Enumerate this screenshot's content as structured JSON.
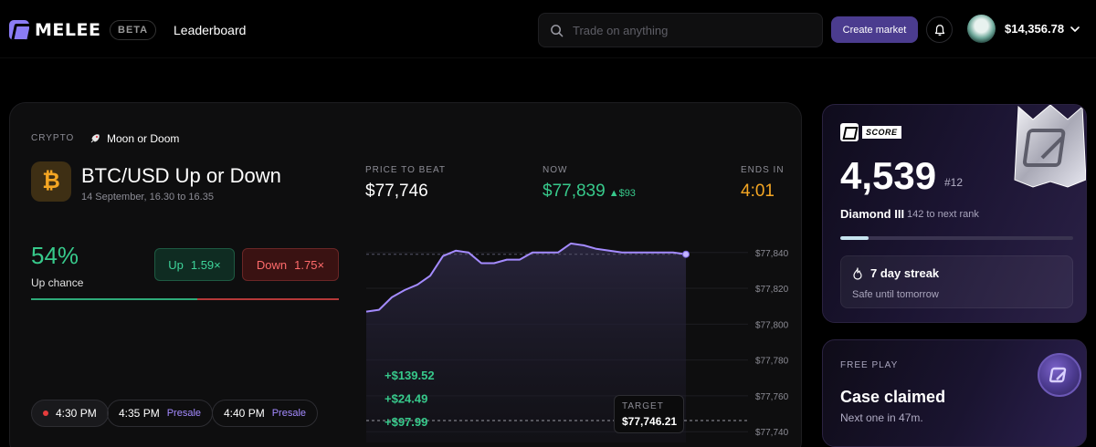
{
  "header": {
    "brand": "MELEE",
    "beta_label": "BETA",
    "nav_leaderboard": "Leaderboard",
    "search_placeholder": "Trade on anything",
    "create_market_label": "Create market",
    "balance": "$14,356.78"
  },
  "market": {
    "category": "CRYPTO",
    "series_name": "Moon or Doom",
    "title": "BTC/USD Up or Down",
    "subtitle": "14 September, 16.30 to 16.35",
    "asset_symbol": "₿",
    "up_chance_value": "54%",
    "up_chance_label": "Up chance",
    "up_chance_fraction": 0.54,
    "up_button": {
      "label": "Up",
      "odds": "1.59×"
    },
    "down_button": {
      "label": "Down",
      "odds": "1.75×"
    },
    "stats": {
      "price_to_beat_label": "PRICE TO BEAT",
      "price_to_beat_value": "$77,746",
      "now_label": "NOW",
      "now_value": "$77,839",
      "now_delta": "▲$93",
      "ends_in_label": "ENDS IN",
      "ends_in_value": "4:01"
    },
    "time_slots": [
      {
        "time": "4:30 PM",
        "tag": "",
        "active": true
      },
      {
        "time": "4:35 PM",
        "tag": "Presale",
        "active": false
      },
      {
        "time": "4:40 PM",
        "tag": "Presale",
        "active": false
      }
    ],
    "target_label": "TARGET",
    "target_value": "$77,746.21",
    "recent_trades": [
      "+$139.52",
      "+$24.49",
      "+$97.99"
    ]
  },
  "chart_data": {
    "type": "line",
    "y_ticks": [
      "$77,840",
      "$77,820",
      "$77,800",
      "$77,780",
      "$77,760",
      "$77,740"
    ],
    "ylim": [
      77734,
      77847
    ],
    "target": 77746.21,
    "y": [
      77807,
      77808,
      77815,
      77819,
      77822,
      77827,
      77838,
      77841,
      77840,
      77834,
      77834,
      77836,
      77836,
      77840,
      77840,
      77840,
      77845,
      77844,
      77842,
      77841,
      77840,
      77840,
      77840,
      77840,
      77840,
      77839
    ]
  },
  "score_card": {
    "badge": "SCORE",
    "score_value": "4,539",
    "rank": "#12",
    "tier_name": "Diamond III",
    "tier_next": "142 to next rank",
    "tier_progress": 0.12,
    "streak_title": "7 day streak",
    "streak_sub": "Safe until tomorrow"
  },
  "free_play": {
    "label": "FREE PLAY",
    "title": "Case claimed",
    "subtitle": "Next one in 47m."
  },
  "colors": {
    "accent": "#8b7cf6",
    "up": "#37c98b",
    "down": "#ff6b6b",
    "ends_in": "#f4a623",
    "line": "#a48bff"
  }
}
